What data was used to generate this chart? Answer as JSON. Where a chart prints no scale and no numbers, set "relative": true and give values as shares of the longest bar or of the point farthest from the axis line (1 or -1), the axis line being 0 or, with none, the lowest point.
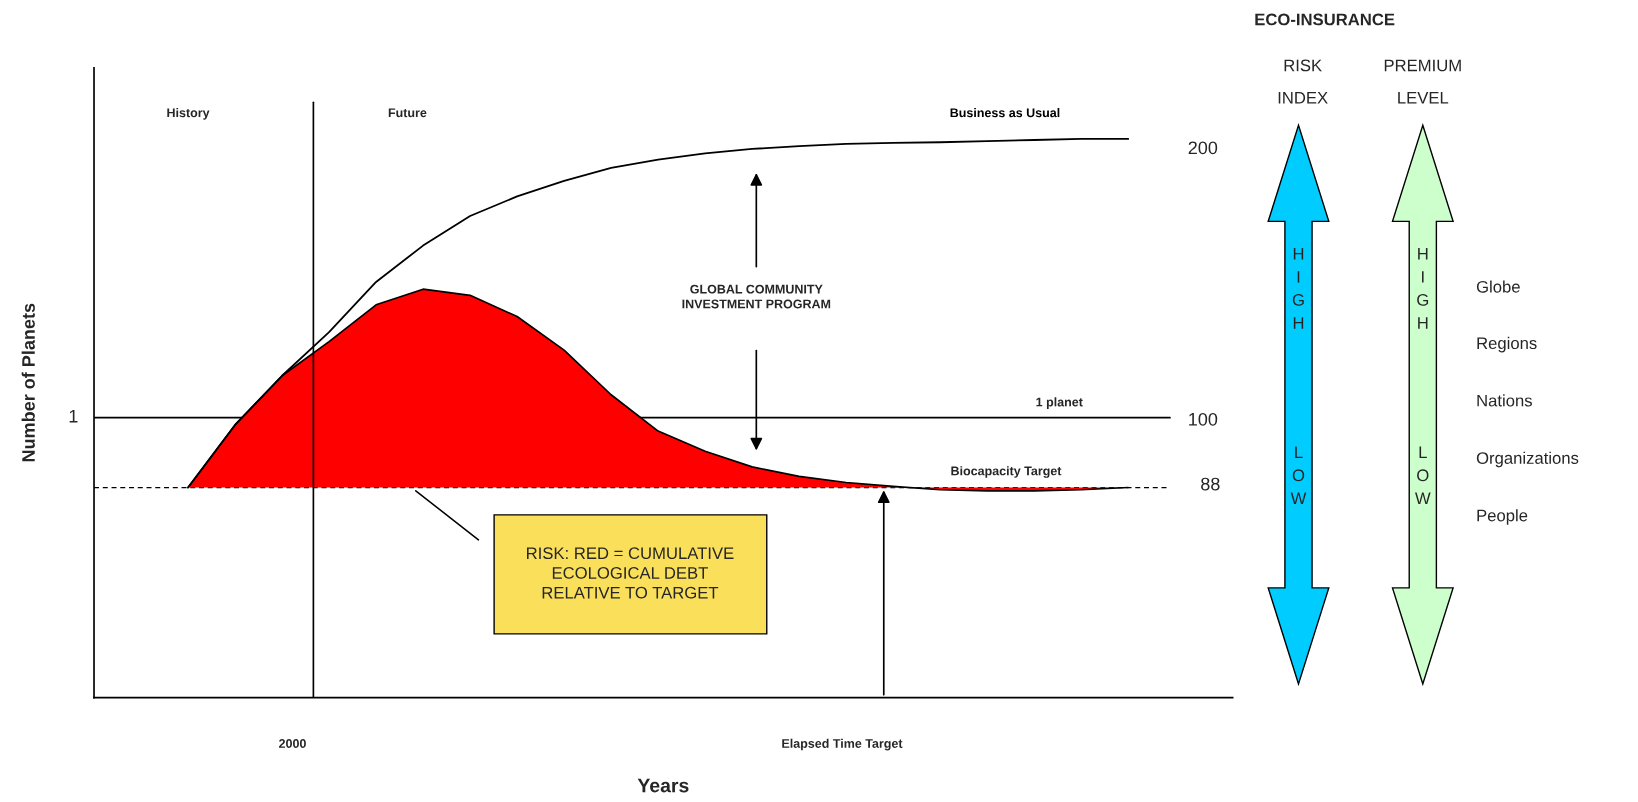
{
  "chart_data": [
    {
      "type": "line",
      "xlabel": "Years",
      "ylabel": "Number of Planets",
      "relative": true,
      "legend": false,
      "grid": false,
      "categories": [
        null,
        null,
        null,
        null,
        null,
        null,
        null,
        null,
        null,
        null,
        null,
        null,
        null,
        null,
        null,
        null,
        null,
        null,
        null,
        null,
        null
      ],
      "series": [
        {
          "name": "Business as Usual",
          "type": "line",
          "color": "#000000",
          "values": [
            0.376,
            0.488,
            0.576,
            0.654,
            0.744,
            0.809,
            0.862,
            0.897,
            0.925,
            0.948,
            0.963,
            0.974,
            0.982,
            0.987,
            0.991,
            0.993,
            0.994,
            0.996,
            0.998,
            1.0,
            1.0
          ]
        },
        {
          "type": "area",
          "color": "#ff0000",
          "values": [
            0.376,
            0.488,
            0.576,
            0.637,
            0.703,
            0.731,
            0.72,
            0.682,
            0.622,
            0.542,
            0.477,
            0.441,
            0.413,
            0.396,
            0.385,
            0.378,
            0.372,
            0.37,
            0.37,
            0.372,
            0.376
          ]
        }
      ],
      "ref_lines": [
        {
          "axis": "y",
          "value": 0.501,
          "label": "1 planet",
          "color": "#000000"
        },
        {
          "axis": "y",
          "value": 0.376,
          "label": "Biocapacity Target",
          "color": "#000000",
          "line_style": "dashed"
        }
      ],
      "annotations": [
        "History",
        "Future",
        "GLOBAL COMMUNITY\nINVESTMENT PROGRAM",
        "1",
        "100",
        "88",
        "200",
        "RISK: RED = CUMULATIVE\nECOLOGICAL DEBT\nRELATIVE TO TARGET",
        "2000",
        "Elapsed Time Target"
      ]
    },
    {
      "type": "other",
      "title": "ECO-INSURANCE",
      "annotations": [
        "RISK",
        "INDEX",
        "PREMIUM",
        "LEVEL",
        "HIGH",
        "LOW",
        "HIGH",
        "LOW",
        "Globe",
        "Regions",
        "Nations",
        "Organizations",
        "People"
      ]
    }
  ]
}
